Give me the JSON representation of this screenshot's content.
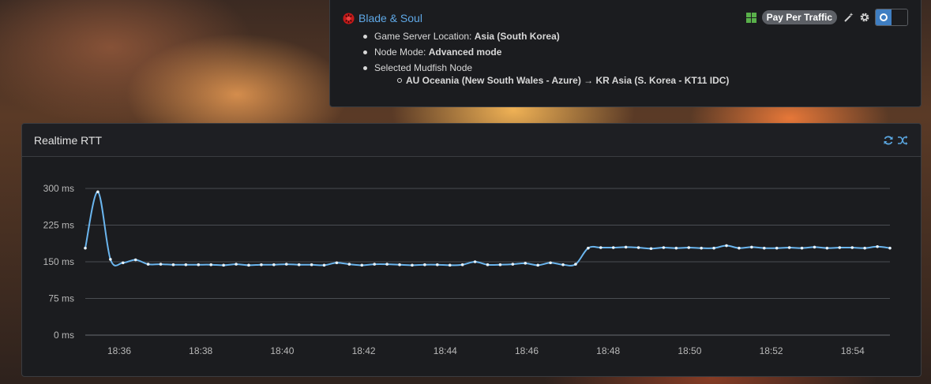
{
  "game": {
    "title": "Blade & Soul",
    "logo_icon": "blade-and-soul-logo-icon",
    "info": [
      {
        "label": "Game Server Location: ",
        "value": "Asia (South Korea)"
      },
      {
        "label": "Node Mode: ",
        "value": "Advanced mode"
      },
      {
        "label": "Selected Mudfish Node",
        "value": ""
      }
    ],
    "route": "AU Oceania (New South Wales - Azure) → KR Asia (S. Korea - KT11 IDC)",
    "platform_icon": "windows-icon",
    "billing_badge": "Pay Per Traffic",
    "tools": [
      "magic-wand-icon",
      "gear-icon"
    ],
    "toggle_on": true,
    "accent_color": "#3f7ec2"
  },
  "rtt_panel": {
    "title": "Realtime RTT",
    "actions": [
      "refresh-icon",
      "shuffle-icon"
    ]
  },
  "chart_data": {
    "type": "line",
    "title": "",
    "xlabel": "",
    "ylabel": "",
    "ylim": [
      0,
      300
    ],
    "yticks": [
      "0 ms",
      "75 ms",
      "150 ms",
      "225 ms",
      "300 ms"
    ],
    "xticks": [
      "18:36",
      "18:38",
      "18:40",
      "18:42",
      "18:44",
      "18:46",
      "18:48",
      "18:50",
      "18:52",
      "18:54"
    ],
    "grid": true,
    "line_color": "#6ab5ee",
    "series": [
      {
        "values": [
          178,
          293,
          155,
          148,
          154,
          145,
          145,
          144,
          144,
          144,
          144,
          143,
          145,
          143,
          144,
          144,
          145,
          144,
          144,
          143,
          148,
          145,
          143,
          145,
          145,
          144,
          143,
          144,
          144,
          143,
          144,
          150,
          144,
          144,
          145,
          147,
          143,
          148,
          144,
          145,
          178,
          179,
          179,
          180,
          179,
          177,
          179,
          178,
          179,
          178,
          178,
          183,
          178,
          180,
          178,
          178,
          179,
          178,
          180,
          178,
          179,
          179,
          178,
          181,
          178
        ]
      }
    ]
  }
}
